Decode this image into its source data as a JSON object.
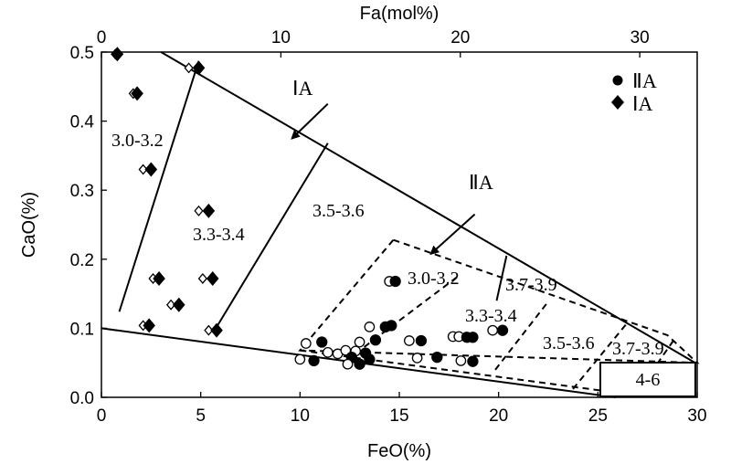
{
  "chart_data": {
    "type": "scatter",
    "title": "",
    "xlabel": "FeO(%)",
    "ylabel": "CaO(%)",
    "x2label": "Fa(mol%)",
    "xlim": [
      0,
      30
    ],
    "ylim": [
      0,
      0.5
    ],
    "x2lim": [
      0,
      33.2
    ],
    "x_ticks": [
      "0",
      "5",
      "10",
      "15",
      "20",
      "25",
      "30"
    ],
    "y_ticks": [
      "0.0",
      "0.1",
      "0.2",
      "0.3",
      "0.4",
      "0.5"
    ],
    "x2_ticks": [
      "0",
      "10",
      "20",
      "30"
    ],
    "legend": [
      {
        "label": "ⅡA",
        "marker": "circle"
      },
      {
        "label": "ⅠA",
        "marker": "diamond"
      }
    ],
    "legend_position": "top-right",
    "series": [
      {
        "name": "ⅠA",
        "marker": "diamond",
        "points": [
          {
            "x": 0.7,
            "y": 0.497,
            "fill": "open"
          },
          {
            "x": 0.8,
            "y": 0.497,
            "fill": "filled"
          },
          {
            "x": 1.6,
            "y": 0.44,
            "fill": "open"
          },
          {
            "x": 1.8,
            "y": 0.44,
            "fill": "filled"
          },
          {
            "x": 2.1,
            "y": 0.33,
            "fill": "open"
          },
          {
            "x": 2.5,
            "y": 0.33,
            "fill": "filled"
          },
          {
            "x": 4.4,
            "y": 0.477,
            "fill": "open"
          },
          {
            "x": 4.9,
            "y": 0.477,
            "fill": "filled"
          },
          {
            "x": 4.9,
            "y": 0.27,
            "fill": "open"
          },
          {
            "x": 5.4,
            "y": 0.27,
            "fill": "filled"
          },
          {
            "x": 2.6,
            "y": 0.172,
            "fill": "open"
          },
          {
            "x": 2.9,
            "y": 0.172,
            "fill": "filled"
          },
          {
            "x": 5.1,
            "y": 0.172,
            "fill": "open"
          },
          {
            "x": 5.6,
            "y": 0.172,
            "fill": "filled"
          },
          {
            "x": 3.5,
            "y": 0.134,
            "fill": "open"
          },
          {
            "x": 3.9,
            "y": 0.134,
            "fill": "filled"
          },
          {
            "x": 2.1,
            "y": 0.104,
            "fill": "open"
          },
          {
            "x": 2.4,
            "y": 0.104,
            "fill": "filled"
          },
          {
            "x": 5.4,
            "y": 0.097,
            "fill": "open"
          },
          {
            "x": 5.8,
            "y": 0.097,
            "fill": "filled"
          }
        ]
      },
      {
        "name": "ⅡA",
        "marker": "circle",
        "points": [
          {
            "x": 14.5,
            "y": 0.168,
            "fill": "open"
          },
          {
            "x": 14.8,
            "y": 0.168,
            "fill": "filled"
          },
          {
            "x": 13.5,
            "y": 0.102,
            "fill": "open"
          },
          {
            "x": 14.3,
            "y": 0.102,
            "fill": "filled"
          },
          {
            "x": 14.6,
            "y": 0.104,
            "fill": "filled"
          },
          {
            "x": 13.8,
            "y": 0.083,
            "fill": "filled"
          },
          {
            "x": 10.3,
            "y": 0.078,
            "fill": "open"
          },
          {
            "x": 11.1,
            "y": 0.08,
            "fill": "filled"
          },
          {
            "x": 11.4,
            "y": 0.065,
            "fill": "open"
          },
          {
            "x": 11.9,
            "y": 0.063,
            "fill": "open"
          },
          {
            "x": 12.3,
            "y": 0.068,
            "fill": "open"
          },
          {
            "x": 12.8,
            "y": 0.067,
            "fill": "open"
          },
          {
            "x": 13.0,
            "y": 0.08,
            "fill": "open"
          },
          {
            "x": 13.3,
            "y": 0.064,
            "fill": "filled"
          },
          {
            "x": 12.6,
            "y": 0.058,
            "fill": "filled"
          },
          {
            "x": 13.5,
            "y": 0.055,
            "fill": "filled"
          },
          {
            "x": 10.0,
            "y": 0.055,
            "fill": "open"
          },
          {
            "x": 10.7,
            "y": 0.053,
            "fill": "filled"
          },
          {
            "x": 12.4,
            "y": 0.048,
            "fill": "open"
          },
          {
            "x": 13.0,
            "y": 0.048,
            "fill": "filled"
          },
          {
            "x": 15.5,
            "y": 0.082,
            "fill": "open"
          },
          {
            "x": 16.1,
            "y": 0.082,
            "fill": "filled"
          },
          {
            "x": 15.9,
            "y": 0.057,
            "fill": "open"
          },
          {
            "x": 16.9,
            "y": 0.058,
            "fill": "filled"
          },
          {
            "x": 17.7,
            "y": 0.088,
            "fill": "open"
          },
          {
            "x": 18.0,
            "y": 0.088,
            "fill": "open"
          },
          {
            "x": 18.4,
            "y": 0.087,
            "fill": "filled"
          },
          {
            "x": 18.7,
            "y": 0.087,
            "fill": "filled"
          },
          {
            "x": 18.1,
            "y": 0.053,
            "fill": "open"
          },
          {
            "x": 18.7,
            "y": 0.052,
            "fill": "filled"
          },
          {
            "x": 19.7,
            "y": 0.097,
            "fill": "open"
          },
          {
            "x": 20.2,
            "y": 0.097,
            "fill": "filled"
          }
        ]
      }
    ],
    "regions": [
      {
        "label": "3.0-3.2"
      },
      {
        "label": "3.3-3.4"
      },
      {
        "label": "3.5-3.6"
      },
      {
        "label": "3.7-3.9"
      },
      {
        "label": "4-6"
      }
    ],
    "dashed_regions": [
      {
        "label": "3.0-3.2"
      },
      {
        "label": "3.3-3.4"
      },
      {
        "label": "3.5-3.6"
      },
      {
        "label": "3.7-3.9"
      }
    ],
    "annotations": [
      {
        "label": "ⅠA",
        "arrow_from": [
          11.4,
          0.425
        ],
        "arrow_to": [
          9.6,
          0.375
        ]
      },
      {
        "label": "ⅡA",
        "arrow_from": [
          18.8,
          0.265
        ],
        "arrow_to": [
          16.6,
          0.208
        ]
      }
    ]
  }
}
